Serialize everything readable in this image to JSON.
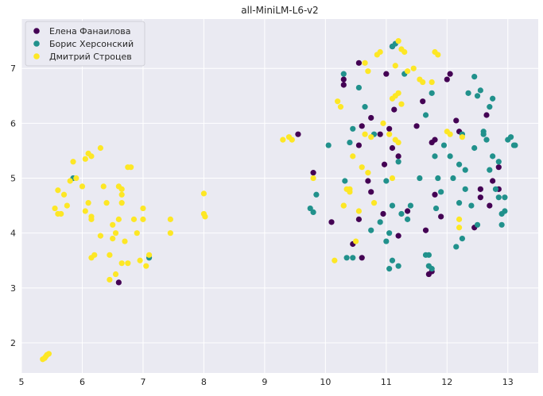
{
  "chart_data": {
    "type": "scatter",
    "title": "all-MiniLM-L6-v2",
    "xlabel": "",
    "ylabel": "",
    "xlim": [
      5.0,
      13.5
    ],
    "ylim": [
      1.45,
      7.9
    ],
    "xticks": [
      5,
      6,
      7,
      8,
      9,
      10,
      11,
      12,
      13
    ],
    "yticks": [
      2,
      3,
      4,
      5,
      6,
      7
    ],
    "grid": true,
    "background": "#eaeaf2",
    "legend_position": "top-left",
    "series": [
      {
        "name": "Елена Фанаилова",
        "color": "#440154",
        "points": [
          [
            9.55,
            5.8
          ],
          [
            9.8,
            5.1
          ],
          [
            10.1,
            4.2
          ],
          [
            10.3,
            6.8
          ],
          [
            10.3,
            6.7
          ],
          [
            10.55,
            7.1
          ],
          [
            10.6,
            5.95
          ],
          [
            10.55,
            5.6
          ],
          [
            10.55,
            4.25
          ],
          [
            10.45,
            3.8
          ],
          [
            10.6,
            3.55
          ],
          [
            10.7,
            4.95
          ],
          [
            10.75,
            4.75
          ],
          [
            10.75,
            6.1
          ],
          [
            10.9,
            5.8
          ],
          [
            10.95,
            4.35
          ],
          [
            10.97,
            5.25
          ],
          [
            11.05,
            5.9
          ],
          [
            11.1,
            5.55
          ],
          [
            11.13,
            6.25
          ],
          [
            11.1,
            7.4
          ],
          [
            11.0,
            6.9
          ],
          [
            11.2,
            5.4
          ],
          [
            11.2,
            3.95
          ],
          [
            11.35,
            4.4
          ],
          [
            11.5,
            5.95
          ],
          [
            11.6,
            6.4
          ],
          [
            11.65,
            4.05
          ],
          [
            11.7,
            3.25
          ],
          [
            11.75,
            3.3
          ],
          [
            11.75,
            5.65
          ],
          [
            11.8,
            5.7
          ],
          [
            11.8,
            4.7
          ],
          [
            11.9,
            4.3
          ],
          [
            12.0,
            6.8
          ],
          [
            12.05,
            6.9
          ],
          [
            12.15,
            6.05
          ],
          [
            12.2,
            5.85
          ],
          [
            12.45,
            4.1
          ],
          [
            12.55,
            4.8
          ],
          [
            12.55,
            4.65
          ],
          [
            12.65,
            6.15
          ],
          [
            12.75,
            4.95
          ],
          [
            12.7,
            4.5
          ],
          [
            12.85,
            4.8
          ],
          [
            12.85,
            5.2
          ],
          [
            6.6,
            3.1
          ]
        ]
      },
      {
        "name": "Борис Херсонский",
        "color": "#21918c",
        "points": [
          [
            5.85,
            5.0
          ],
          [
            7.1,
            3.55
          ],
          [
            9.75,
            4.45
          ],
          [
            9.8,
            4.38
          ],
          [
            9.85,
            4.7
          ],
          [
            10.05,
            5.6
          ],
          [
            10.3,
            6.9
          ],
          [
            10.32,
            4.95
          ],
          [
            10.35,
            3.55
          ],
          [
            10.4,
            5.65
          ],
          [
            10.45,
            5.9
          ],
          [
            10.45,
            3.55
          ],
          [
            10.55,
            6.65
          ],
          [
            10.65,
            6.3
          ],
          [
            10.75,
            4.05
          ],
          [
            10.8,
            5.8
          ],
          [
            10.9,
            4.2
          ],
          [
            11.0,
            3.85
          ],
          [
            11.0,
            4.95
          ],
          [
            11.05,
            4.0
          ],
          [
            11.05,
            3.35
          ],
          [
            11.1,
            3.5
          ],
          [
            11.1,
            4.5
          ],
          [
            11.1,
            7.4
          ],
          [
            11.15,
            7.45
          ],
          [
            11.2,
            3.4
          ],
          [
            11.2,
            5.3
          ],
          [
            11.25,
            4.35
          ],
          [
            11.3,
            6.9
          ],
          [
            11.35,
            4.25
          ],
          [
            11.4,
            4.5
          ],
          [
            11.55,
            5.0
          ],
          [
            11.65,
            3.6
          ],
          [
            11.65,
            6.15
          ],
          [
            11.7,
            3.6
          ],
          [
            11.7,
            3.4
          ],
          [
            11.75,
            3.35
          ],
          [
            11.75,
            6.55
          ],
          [
            11.8,
            5.4
          ],
          [
            11.82,
            4.45
          ],
          [
            11.85,
            5.0
          ],
          [
            11.9,
            4.75
          ],
          [
            11.95,
            5.6
          ],
          [
            12.05,
            5.4
          ],
          [
            12.1,
            5.0
          ],
          [
            12.15,
            3.75
          ],
          [
            12.2,
            4.55
          ],
          [
            12.2,
            5.25
          ],
          [
            12.25,
            3.9
          ],
          [
            12.25,
            5.8
          ],
          [
            12.3,
            4.8
          ],
          [
            12.3,
            5.15
          ],
          [
            12.35,
            6.55
          ],
          [
            12.4,
            4.5
          ],
          [
            12.45,
            5.55
          ],
          [
            12.45,
            6.85
          ],
          [
            12.5,
            6.5
          ],
          [
            12.5,
            4.15
          ],
          [
            12.55,
            6.6
          ],
          [
            12.6,
            5.85
          ],
          [
            12.6,
            5.8
          ],
          [
            12.65,
            5.7
          ],
          [
            12.7,
            5.15
          ],
          [
            12.7,
            6.3
          ],
          [
            12.75,
            6.45
          ],
          [
            12.75,
            5.4
          ],
          [
            12.8,
            4.8
          ],
          [
            12.85,
            4.65
          ],
          [
            12.85,
            5.3
          ],
          [
            12.9,
            4.15
          ],
          [
            12.9,
            4.35
          ],
          [
            12.95,
            4.65
          ],
          [
            12.95,
            4.4
          ],
          [
            13.0,
            5.7
          ],
          [
            13.05,
            5.75
          ],
          [
            13.1,
            5.6
          ],
          [
            13.12,
            5.6
          ]
        ]
      },
      {
        "name": "Дмитрий Строцев",
        "color": "#fde725",
        "points": [
          [
            5.35,
            1.7
          ],
          [
            5.4,
            1.75
          ],
          [
            5.45,
            1.8
          ],
          [
            5.42,
            1.78
          ],
          [
            5.38,
            1.72
          ],
          [
            5.55,
            4.45
          ],
          [
            5.6,
            4.35
          ],
          [
            5.6,
            4.78
          ],
          [
            5.65,
            4.35
          ],
          [
            5.7,
            4.7
          ],
          [
            5.75,
            4.5
          ],
          [
            5.8,
            4.95
          ],
          [
            5.85,
            5.3
          ],
          [
            5.9,
            5.0
          ],
          [
            6.0,
            4.85
          ],
          [
            6.05,
            5.35
          ],
          [
            6.05,
            4.4
          ],
          [
            6.1,
            4.55
          ],
          [
            6.1,
            5.45
          ],
          [
            6.15,
            4.3
          ],
          [
            6.15,
            4.25
          ],
          [
            6.15,
            5.4
          ],
          [
            6.15,
            3.55
          ],
          [
            6.2,
            3.6
          ],
          [
            6.3,
            5.55
          ],
          [
            6.3,
            3.95
          ],
          [
            6.35,
            4.85
          ],
          [
            6.4,
            4.55
          ],
          [
            6.45,
            3.6
          ],
          [
            6.45,
            3.15
          ],
          [
            6.5,
            3.9
          ],
          [
            6.5,
            4.15
          ],
          [
            6.55,
            4.0
          ],
          [
            6.55,
            3.25
          ],
          [
            6.6,
            4.25
          ],
          [
            6.6,
            4.85
          ],
          [
            6.65,
            4.8
          ],
          [
            6.65,
            4.7
          ],
          [
            6.65,
            4.55
          ],
          [
            6.65,
            3.45
          ],
          [
            6.7,
            3.85
          ],
          [
            6.75,
            5.2
          ],
          [
            6.75,
            3.45
          ],
          [
            6.8,
            5.2
          ],
          [
            6.85,
            4.25
          ],
          [
            6.9,
            4.0
          ],
          [
            6.95,
            3.5
          ],
          [
            7.0,
            4.45
          ],
          [
            7.0,
            4.25
          ],
          [
            7.05,
            3.4
          ],
          [
            7.1,
            3.6
          ],
          [
            7.45,
            4.25
          ],
          [
            7.45,
            4.0
          ],
          [
            8.0,
            4.35
          ],
          [
            8.02,
            4.3
          ],
          [
            8.0,
            4.72
          ],
          [
            9.3,
            5.7
          ],
          [
            9.4,
            5.75
          ],
          [
            9.45,
            5.7
          ],
          [
            9.8,
            5.0
          ],
          [
            10.15,
            3.5
          ],
          [
            10.2,
            6.4
          ],
          [
            10.25,
            6.3
          ],
          [
            10.3,
            4.5
          ],
          [
            10.35,
            4.8
          ],
          [
            10.4,
            4.8
          ],
          [
            10.45,
            5.4
          ],
          [
            10.5,
            3.85
          ],
          [
            10.55,
            4.4
          ],
          [
            10.6,
            5.2
          ],
          [
            10.65,
            5.8
          ],
          [
            10.65,
            7.1
          ],
          [
            10.7,
            5.1
          ],
          [
            10.7,
            6.95
          ],
          [
            10.75,
            5.75
          ],
          [
            10.85,
            7.25
          ],
          [
            10.9,
            7.3
          ],
          [
            10.95,
            6.0
          ],
          [
            11.05,
            5.8
          ],
          [
            11.1,
            6.45
          ],
          [
            11.1,
            5.0
          ],
          [
            11.15,
            7.05
          ],
          [
            11.15,
            6.5
          ],
          [
            11.2,
            6.55
          ],
          [
            11.2,
            7.5
          ],
          [
            11.25,
            6.35
          ],
          [
            11.25,
            7.35
          ],
          [
            11.3,
            7.3
          ],
          [
            11.35,
            6.95
          ],
          [
            11.45,
            7.0
          ],
          [
            11.55,
            6.8
          ],
          [
            11.6,
            6.75
          ],
          [
            11.75,
            6.75
          ],
          [
            11.8,
            7.3
          ],
          [
            11.85,
            7.25
          ],
          [
            12.0,
            5.85
          ],
          [
            12.05,
            5.8
          ],
          [
            12.2,
            4.25
          ],
          [
            12.2,
            4.1
          ],
          [
            12.25,
            5.75
          ],
          [
            11.15,
            5.7
          ],
          [
            11.2,
            5.65
          ],
          [
            10.4,
            4.75
          ],
          [
            10.3,
            4.5
          ],
          [
            10.8,
            4.55
          ]
        ]
      }
    ]
  }
}
